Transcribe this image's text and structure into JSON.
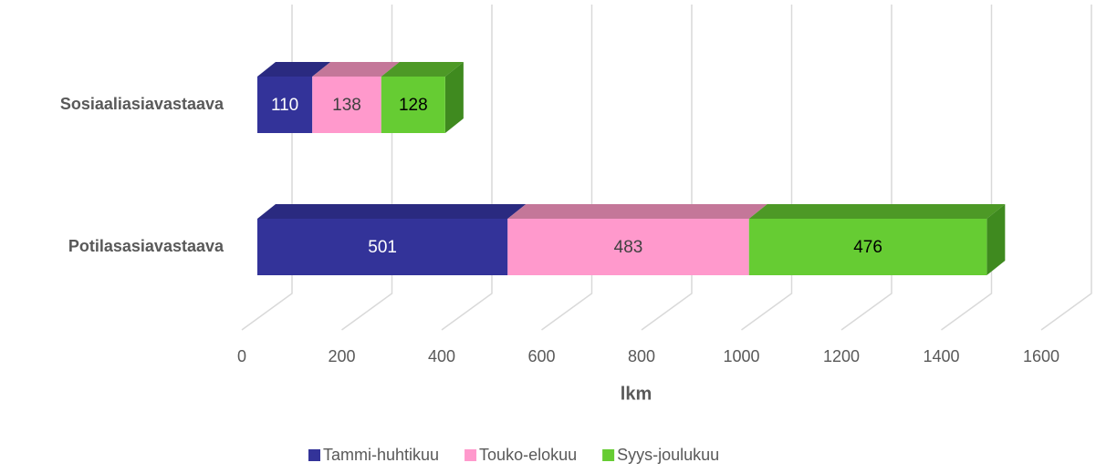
{
  "chart_data": {
    "type": "bar3d_stacked_horizontal",
    "categories": [
      "Sosiaaliasiavastaava",
      "Potilasasiavastaava"
    ],
    "series": [
      {
        "name": "Tammi-huhtikuu",
        "color": "#333399",
        "top_color": "#2a2a80",
        "side_color": "#262673",
        "label_color": "#ffffff",
        "values": [
          110,
          501
        ]
      },
      {
        "name": "Touko-elokuu",
        "color": "#ff99cc",
        "top_color": "#c47799",
        "side_color": "#b36b8c",
        "label_color": "#404040",
        "values": [
          138,
          483
        ]
      },
      {
        "name": "Syys-joulukuu",
        "color": "#66cc33",
        "top_color": "#4d9926",
        "side_color": "#3f8a1f",
        "label_color": "#000000",
        "values": [
          128,
          476
        ]
      }
    ],
    "xlabel": "lkm",
    "xlim": [
      0,
      1600
    ],
    "xticks": [
      0,
      200,
      400,
      600,
      800,
      1000,
      1200,
      1400,
      1600
    ],
    "grid": true,
    "legend": "bottom"
  }
}
